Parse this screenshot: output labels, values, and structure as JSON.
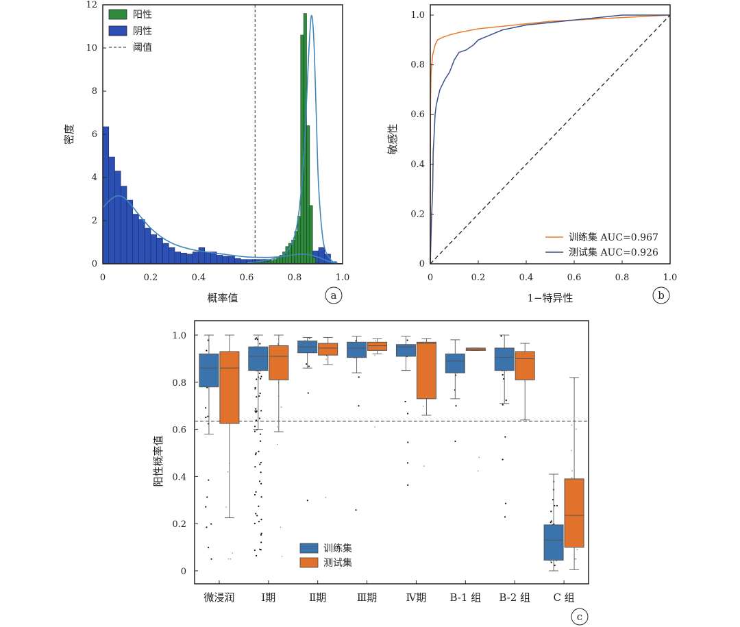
{
  "chart_data": [
    {
      "panel": "a",
      "type": "bar",
      "xlabel": "概率值",
      "ylabel": "密度",
      "xlim": [
        0,
        1.0
      ],
      "ylim": [
        0,
        12
      ],
      "xticks": [
        "0",
        "0.2",
        "0.4",
        "0.6",
        "0.8",
        "1.0"
      ],
      "yticks": [
        "0",
        "2",
        "4",
        "6",
        "8",
        "10",
        "12"
      ],
      "threshold": 0.635,
      "legend": [
        "阳性",
        "阴性",
        "阈值"
      ],
      "legend_position": "top-left",
      "colors": {
        "positive": "#2e8b3e",
        "negative": "#2c4fb4",
        "kde": "#3f86b8"
      },
      "series": [
        {
          "name": "阴性",
          "bin_width": 0.025,
          "values": [
            6.35,
            4.95,
            4.3,
            3.6,
            2.95,
            2.3,
            2.05,
            1.65,
            1.35,
            1.2,
            0.95,
            0.75,
            0.55,
            0.5,
            0.45,
            0.55,
            0.75,
            0.55,
            0.55,
            0.4,
            0.35,
            0.35,
            0.25,
            0.2,
            0.2,
            0.2,
            0.2,
            0.2,
            0.15,
            0.15,
            0.1,
            0.1,
            0.1,
            0.1,
            0.5,
            0.6,
            0.75,
            0.45,
            0.1,
            0.02
          ]
        },
        {
          "name": "阳性",
          "bin_start": 0.625,
          "bin_width": 0.0125,
          "values": [
            0.05,
            0.06,
            0.07,
            0.08,
            0.1,
            0.12,
            0.15,
            0.2,
            0.3,
            0.4,
            0.55,
            0.8,
            0.95,
            1.1,
            1.5,
            2.2,
            10.6,
            11.6,
            6.4,
            2.7,
            0.3,
            0.05
          ]
        }
      ],
      "kde_negative_x": [
        0,
        0.03,
        0.06,
        0.09,
        0.12,
        0.16,
        0.2,
        0.25,
        0.3,
        0.35,
        0.4,
        0.45,
        0.5,
        0.55,
        0.6,
        0.65,
        0.7,
        0.75,
        0.8,
        0.83,
        0.86,
        0.9,
        0.94,
        0.97
      ],
      "kde_negative_y": [
        2.6,
        2.95,
        3.15,
        3.05,
        2.7,
        2.15,
        1.65,
        1.2,
        0.9,
        0.72,
        0.6,
        0.52,
        0.45,
        0.38,
        0.32,
        0.3,
        0.3,
        0.34,
        0.42,
        0.45,
        0.42,
        0.3,
        0.12,
        0.03
      ],
      "kde_positive_x": [
        0.6,
        0.65,
        0.7,
        0.74,
        0.77,
        0.8,
        0.82,
        0.84,
        0.85,
        0.86,
        0.87,
        0.88,
        0.89,
        0.9,
        0.92,
        0.95,
        0.98
      ],
      "kde_positive_y": [
        0.05,
        0.1,
        0.2,
        0.35,
        0.6,
        1.3,
        2.6,
        5.2,
        7.6,
        10.0,
        11.5,
        10.4,
        7.0,
        3.6,
        1.0,
        0.2,
        0.02
      ]
    },
    {
      "panel": "b",
      "type": "line",
      "xlabel": "1−特异性",
      "ylabel": "敏感性",
      "xlim": [
        0,
        1.0
      ],
      "ylim": [
        0,
        1.0
      ],
      "xticks": [
        "0",
        "0.2",
        "0.4",
        "0.6",
        "0.8",
        "1.0"
      ],
      "yticks": [
        "0",
        "0.2",
        "0.4",
        "0.6",
        "0.8",
        "1.0"
      ],
      "legend_position": "bottom-right",
      "series": [
        {
          "name": "训练集",
          "label": "训练集 AUC=0.967",
          "color": "#e87b2b",
          "x": [
            0,
            0.001,
            0.003,
            0.006,
            0.01,
            0.02,
            0.03,
            0.05,
            0.08,
            0.12,
            0.2,
            0.3,
            0.4,
            0.5,
            0.6,
            0.7,
            0.8,
            0.9,
            1.0
          ],
          "y": [
            0,
            0.65,
            0.76,
            0.8,
            0.84,
            0.88,
            0.9,
            0.91,
            0.92,
            0.93,
            0.945,
            0.955,
            0.965,
            0.975,
            0.98,
            0.985,
            0.99,
            0.995,
            1.0
          ]
        },
        {
          "name": "测试集",
          "label": "测试集 AUC=0.926",
          "color": "#3a4f8c",
          "x": [
            0,
            0.005,
            0.01,
            0.012,
            0.015,
            0.02,
            0.025,
            0.03,
            0.04,
            0.05,
            0.06,
            0.08,
            0.1,
            0.12,
            0.15,
            0.18,
            0.2,
            0.25,
            0.3,
            0.35,
            0.4,
            0.5,
            0.6,
            0.7,
            0.8,
            0.9,
            1.0
          ],
          "y": [
            0,
            0.18,
            0.3,
            0.45,
            0.5,
            0.6,
            0.64,
            0.66,
            0.7,
            0.72,
            0.74,
            0.77,
            0.82,
            0.85,
            0.86,
            0.88,
            0.9,
            0.92,
            0.94,
            0.95,
            0.96,
            0.97,
            0.98,
            0.99,
            1.0,
            1.0,
            1.0
          ]
        },
        {
          "name": "参考线",
          "color": "#222222",
          "x": [
            0,
            1.0
          ],
          "y": [
            0,
            1.0
          ]
        }
      ]
    },
    {
      "panel": "c",
      "type": "box",
      "ylabel": "阳性概率值",
      "ylim": [
        0,
        1.0
      ],
      "yticks": [
        "0",
        "0.2",
        "0.4",
        "0.6",
        "0.8",
        "1.0"
      ],
      "threshold": 0.635,
      "legend": [
        "训练集",
        "测试集"
      ],
      "legend_position": "bottom-center",
      "colors": {
        "训练集": "#3b74ad",
        "测试集": "#e0722c"
      },
      "categories": [
        "微浸润",
        "Ⅰ期",
        "Ⅱ期",
        "Ⅲ期",
        "Ⅳ期",
        "B-1 组",
        "B-2 组",
        "C 组"
      ],
      "series": [
        {
          "name": "训练集",
          "q1": [
            0.78,
            0.85,
            0.925,
            0.905,
            0.91,
            0.84,
            0.85,
            0.045
          ],
          "median": [
            0.86,
            0.91,
            0.95,
            0.945,
            0.95,
            0.89,
            0.905,
            0.13
          ],
          "q3": [
            0.92,
            0.95,
            0.975,
            0.97,
            0.96,
            0.92,
            0.945,
            0.195
          ],
          "whisker_low": [
            0.58,
            0.6,
            0.86,
            0.84,
            0.85,
            0.73,
            0.71,
            0.0
          ],
          "whisker_high": [
            1.0,
            1.0,
            0.99,
            0.995,
            0.995,
            0.98,
            1.0,
            0.41
          ]
        },
        {
          "name": "测试集",
          "q1": [
            0.625,
            0.81,
            0.915,
            0.935,
            0.73,
            0.935,
            0.81,
            0.1
          ],
          "median": [
            0.86,
            0.91,
            0.945,
            0.955,
            0.965,
            0.94,
            0.9,
            0.235
          ],
          "q3": [
            0.93,
            0.955,
            0.965,
            0.97,
            0.97,
            0.945,
            0.93,
            0.39
          ],
          "whisker_low": [
            0.225,
            0.59,
            0.875,
            0.92,
            0.66,
            0.935,
            0.64,
            0.005
          ],
          "whisker_high": [
            1.0,
            1.0,
            0.99,
            0.985,
            0.985,
            0.945,
            0.965,
            0.82
          ]
        }
      ]
    }
  ],
  "panel_labels": [
    "a",
    "b",
    "c"
  ]
}
